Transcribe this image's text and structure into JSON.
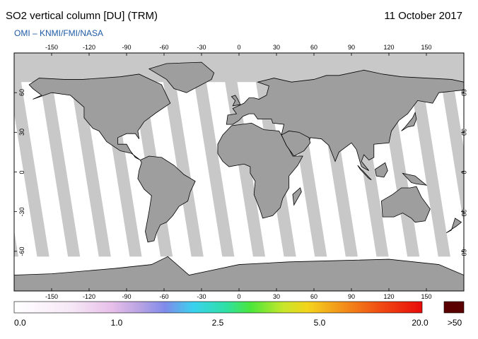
{
  "header": {
    "title": "SO2 vertical column [DU] (TRM)",
    "date": "11 October 2017",
    "subtitle": "OMI  –  KNMI/FMI/NASA"
  },
  "map": {
    "projection": "equirectangular",
    "lon_ticks": [
      "-150",
      "-120",
      "-90",
      "-60",
      "-30",
      "0",
      "30",
      "60",
      "90",
      "120",
      "150"
    ],
    "lat_ticks_left": [
      "60",
      "30",
      "0",
      "-30",
      "-60"
    ],
    "lat_ticks_right": [
      "60",
      "30",
      "0",
      "-30",
      "-60"
    ],
    "colors": {
      "land": "#9e9e9e",
      "no_data": "#c8c8c8",
      "swath": "#ffffff",
      "coastline": "#000000"
    }
  },
  "colorbar": {
    "labels": [
      "0.0",
      "1.0",
      "2.5",
      "5.0",
      "20.0",
      ">50"
    ],
    "overflow_color": "#5a0000"
  }
}
